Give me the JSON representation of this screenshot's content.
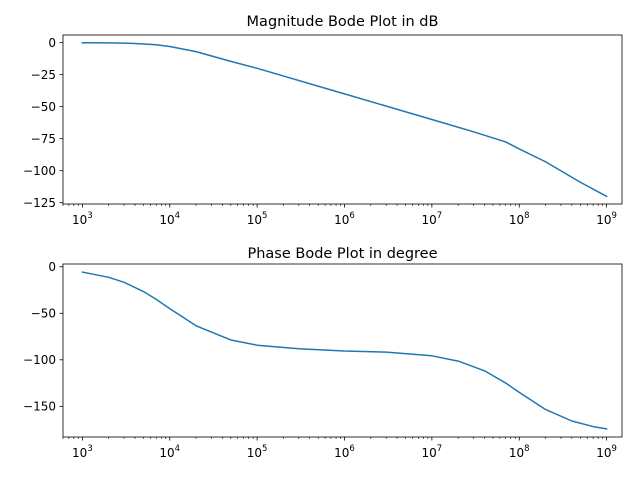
{
  "chart_data": [
    {
      "type": "line",
      "title": "Magnitude Bode Plot in dB",
      "xlabel": "",
      "ylabel": "",
      "xscale": "log",
      "xlim": [
        600,
        1500000000
      ],
      "ylim": [
        -126,
        6
      ],
      "grid": false,
      "x_ticks": [
        {
          "base": "10",
          "exp": "3",
          "value": 1000
        },
        {
          "base": "10",
          "exp": "4",
          "value": 10000
        },
        {
          "base": "10",
          "exp": "5",
          "value": 100000
        },
        {
          "base": "10",
          "exp": "6",
          "value": 1000000
        },
        {
          "base": "10",
          "exp": "7",
          "value": 10000000
        },
        {
          "base": "10",
          "exp": "8",
          "value": 100000000
        },
        {
          "base": "10",
          "exp": "9",
          "value": 1000000000
        }
      ],
      "y_ticks": [
        {
          "label": "0",
          "value": 0
        },
        {
          "label": "−25",
          "value": -25
        },
        {
          "label": "−50",
          "value": -50
        },
        {
          "label": "−75",
          "value": -75
        },
        {
          "label": "−100",
          "value": -100
        },
        {
          "label": "−125",
          "value": -125
        }
      ],
      "series": [
        {
          "color": "#1f77b4",
          "x": [
            1000,
            2000,
            4000,
            7000,
            10000,
            20000,
            50000,
            100000,
            1000000,
            10000000,
            30000000,
            70000000,
            100000000,
            200000000,
            500000000,
            1000000000
          ],
          "y": [
            -0.04,
            -0.17,
            -0.6,
            -1.6,
            -3.0,
            -7.0,
            -14.6,
            -20.0,
            -40.0,
            -60.0,
            -69.6,
            -77.5,
            -83.0,
            -93.0,
            -109.0,
            -120.0
          ]
        }
      ]
    },
    {
      "type": "line",
      "title": "Phase Bode Plot in degree",
      "xlabel": "",
      "ylabel": "",
      "xscale": "log",
      "xlim": [
        600,
        1500000000
      ],
      "ylim": [
        -183,
        3
      ],
      "grid": false,
      "x_ticks": [
        {
          "base": "10",
          "exp": "3",
          "value": 1000
        },
        {
          "base": "10",
          "exp": "4",
          "value": 10000
        },
        {
          "base": "10",
          "exp": "5",
          "value": 100000
        },
        {
          "base": "10",
          "exp": "6",
          "value": 1000000
        },
        {
          "base": "10",
          "exp": "7",
          "value": 10000000
        },
        {
          "base": "10",
          "exp": "8",
          "value": 100000000
        },
        {
          "base": "10",
          "exp": "9",
          "value": 1000000000
        }
      ],
      "y_ticks": [
        {
          "label": "0",
          "value": 0
        },
        {
          "label": "−50",
          "value": -50
        },
        {
          "label": "−100",
          "value": -100
        },
        {
          "label": "−150",
          "value": -150
        }
      ],
      "series": [
        {
          "color": "#1f77b4",
          "x": [
            1000,
            2000,
            3000,
            5000,
            7000,
            10000,
            20000,
            50000,
            100000,
            300000,
            1000000,
            3000000,
            10000000,
            20000000,
            40000000,
            70000000,
            100000000,
            200000000,
            400000000,
            700000000,
            1000000000
          ],
          "y": [
            -5.7,
            -11.3,
            -16.7,
            -26.6,
            -35.0,
            -45.0,
            -63.4,
            -78.7,
            -84.3,
            -88.1,
            -90.6,
            -91.7,
            -95.7,
            -101.4,
            -111.8,
            -125.0,
            -135.0,
            -153.4,
            -165.8,
            -171.8,
            -174.3
          ]
        }
      ]
    }
  ]
}
